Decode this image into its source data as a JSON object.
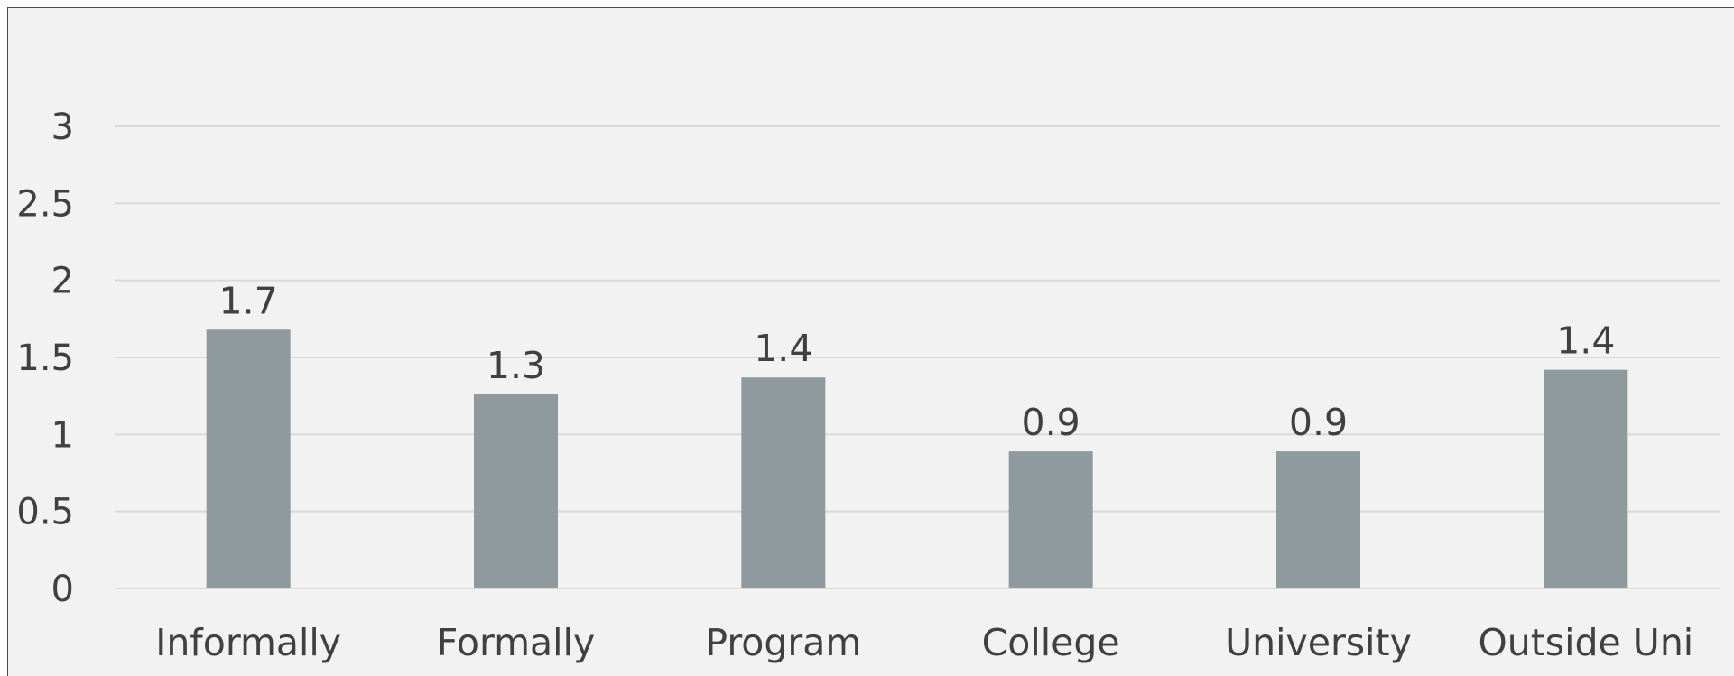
{
  "chart_data": {
    "type": "bar",
    "categories": [
      "Informally",
      "Formally",
      "Program",
      "College",
      "University",
      "Outside Uni"
    ],
    "values": [
      1.68,
      1.26,
      1.37,
      0.89,
      0.89,
      1.42
    ],
    "data_labels": [
      "1.7",
      "1.3",
      "1.4",
      "0.9",
      "0.9",
      "1.4"
    ],
    "y_ticks": [
      "0",
      "0.5",
      "1",
      "1.5",
      "2",
      "2.5",
      "3"
    ],
    "ylim": [
      0,
      3
    ],
    "grid": true,
    "bar_color": "#8e9a9e",
    "background_color": "#f2f2f2",
    "legend": "none"
  }
}
